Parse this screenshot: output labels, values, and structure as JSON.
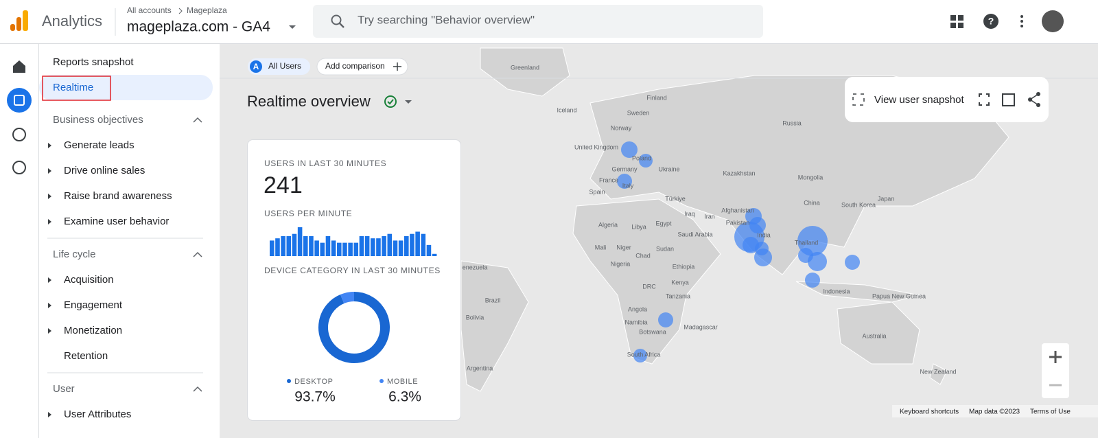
{
  "header": {
    "product": "Analytics",
    "breadcrumb": [
      "All accounts",
      "Mageplaza"
    ],
    "property": "mageplaza.com - GA4",
    "search_placeholder": "Try searching \"Behavior overview\""
  },
  "sidebar": {
    "top": [
      "Reports snapshot",
      "Realtime"
    ],
    "sections": [
      {
        "title": "Business objectives",
        "items": [
          {
            "label": "Generate leads",
            "expandable": true
          },
          {
            "label": "Drive online sales",
            "expandable": true
          },
          {
            "label": "Raise brand awareness",
            "expandable": true
          },
          {
            "label": "Examine user behavior",
            "expandable": true
          }
        ]
      },
      {
        "title": "Life cycle",
        "items": [
          {
            "label": "Acquisition",
            "expandable": true
          },
          {
            "label": "Engagement",
            "expandable": true
          },
          {
            "label": "Monetization",
            "expandable": true
          },
          {
            "label": "Retention",
            "expandable": false
          }
        ]
      },
      {
        "title": "User",
        "items": [
          {
            "label": "User Attributes",
            "expandable": true
          }
        ]
      }
    ]
  },
  "comparison": {
    "badge": "A",
    "segment": "All Users",
    "add": "Add comparison"
  },
  "page_title": "Realtime overview",
  "toolbar": {
    "snapshot": "View user snapshot"
  },
  "card": {
    "users_label": "USERS IN LAST 30 MINUTES",
    "users": 241,
    "per_minute_label": "USERS PER MINUTE",
    "per_minute": {
      "type": "bar",
      "color": "#1a73e8",
      "values": [
        7,
        8,
        9,
        9,
        10,
        13,
        9,
        9,
        7,
        6,
        9,
        7,
        6,
        6,
        6,
        6,
        9,
        9,
        8,
        8,
        9,
        10,
        7,
        7,
        9,
        10,
        11,
        10,
        5,
        1
      ]
    },
    "device_label": "DEVICE CATEGORY IN LAST 30 MINUTES",
    "device": {
      "type": "pie",
      "categories": [
        "DESKTOP",
        "MOBILE"
      ],
      "values": [
        93.7,
        6.3
      ],
      "value_labels": [
        "93.7%",
        "6.3%"
      ],
      "colors": [
        "#1967d2",
        "#4285f4"
      ]
    }
  },
  "map": {
    "labels": [
      "Greenland",
      "Iceland",
      "Finland",
      "Sweden",
      "Norway",
      "Russia",
      "United Kingdom",
      "Poland",
      "Germany",
      "Ukraine",
      "France",
      "Italy",
      "Spain",
      "Kazakhstan",
      "Mongolia",
      "Türkiye",
      "China",
      "South Korea",
      "Japan",
      "Iraq",
      "Afghanistan",
      "Pakistan",
      "Iran",
      "India",
      "Algeria",
      "Libya",
      "Egypt",
      "Saudi Arabia",
      "Thailand",
      "Mali",
      "Niger",
      "Chad",
      "Sudan",
      "Nigeria",
      "Ethiopia",
      "DRC",
      "Kenya",
      "Tanzania",
      "Angola",
      "Namibia",
      "Botswana",
      "Madagascar",
      "South Africa",
      "Indonesia",
      "Papua New Guinea",
      "Australia",
      "New Zealand",
      "enezuela",
      "Brazil",
      "Bolivia",
      "Argentina"
    ]
  },
  "footer": [
    "Keyboard shortcuts",
    "Map data ©2023",
    "Terms of Use"
  ]
}
